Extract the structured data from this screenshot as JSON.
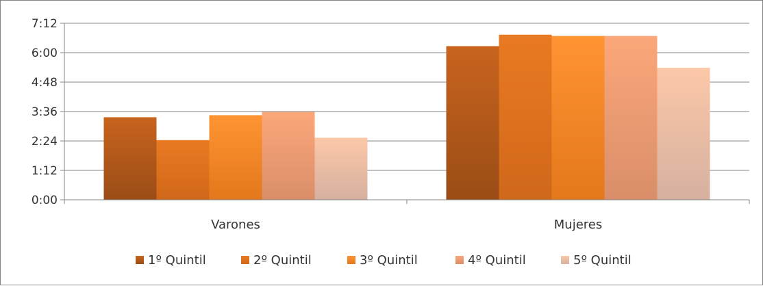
{
  "chart_data": {
    "type": "bar",
    "categories": [
      "Varones",
      "Mujeres"
    ],
    "y_unit": "minutes",
    "y_tick_labels": [
      "0:00",
      "1:12",
      "2:24",
      "3:36",
      "4:48",
      "6:00",
      "7:12"
    ],
    "ylim": [
      0,
      432
    ],
    "grid": true,
    "legend_position": "bottom",
    "title": "",
    "xlabel": "",
    "ylabel": "",
    "series": [
      {
        "name": "1º Quintil",
        "values": [
          202,
          376
        ],
        "color_top": "#c8641e",
        "color_bottom": "#9a4c16"
      },
      {
        "name": "2º Quintil",
        "values": [
          146,
          404
        ],
        "color_top": "#e97a22",
        "color_bottom": "#d0681a"
      },
      {
        "name": "3º Quintil",
        "values": [
          207,
          401
        ],
        "color_top": "#ff9433",
        "color_bottom": "#e3781c"
      },
      {
        "name": "4º Quintil",
        "values": [
          215,
          401
        ],
        "color_top": "#fca77a",
        "color_bottom": "#d98e69"
      },
      {
        "name": "5º Quintil",
        "values": [
          152,
          323
        ],
        "color_top": "#fcc8a8",
        "color_bottom": "#d6b0a0"
      }
    ]
  }
}
